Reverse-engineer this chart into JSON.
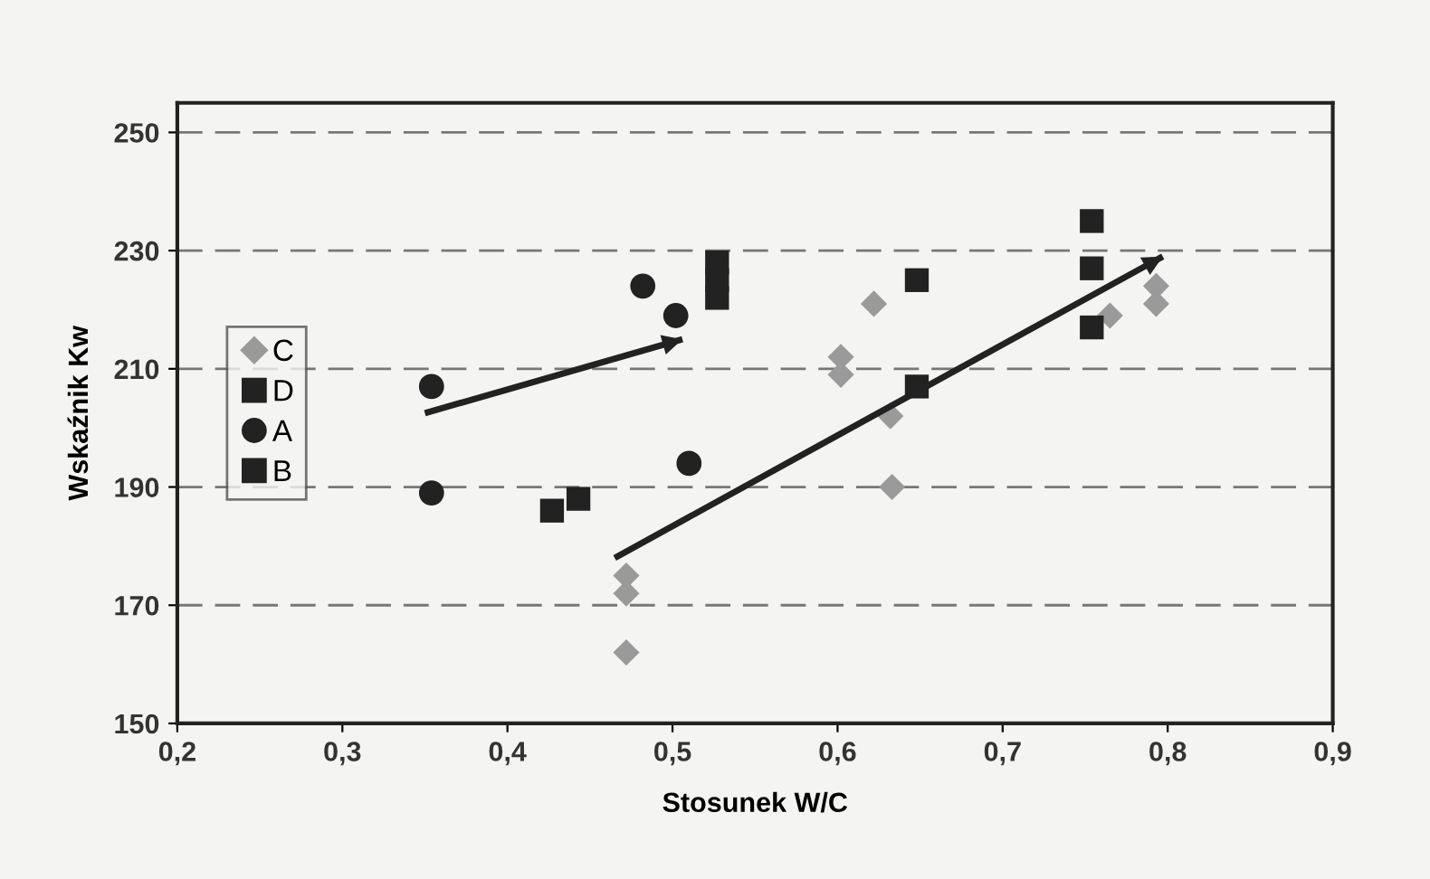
{
  "chart_data": {
    "type": "scatter",
    "xlabel": "Stosunek W/C",
    "ylabel": "Wskaźnik Kw",
    "xlim": [
      0.2,
      0.9
    ],
    "ylim": [
      150,
      255
    ],
    "xticks": [
      {
        "value": 0.2,
        "label": "0,2"
      },
      {
        "value": 0.3,
        "label": "0,3"
      },
      {
        "value": 0.4,
        "label": "0,4"
      },
      {
        "value": 0.5,
        "label": "0,5"
      },
      {
        "value": 0.6,
        "label": "0,6"
      },
      {
        "value": 0.7,
        "label": "0,7"
      },
      {
        "value": 0.8,
        "label": "0,8"
      },
      {
        "value": 0.9,
        "label": "0,9"
      }
    ],
    "yticks": [
      150,
      170,
      190,
      210,
      230,
      250
    ],
    "grid": "y",
    "legend": "left",
    "series": [
      {
        "name": "C",
        "color": "#9a9a9a",
        "marker": "diamond",
        "x": [
          0.472,
          0.472,
          0.472,
          0.602,
          0.602,
          0.622,
          0.632,
          0.633,
          0.765,
          0.793,
          0.793
        ],
        "values": [
          175,
          172,
          162,
          212,
          209,
          221,
          202,
          190,
          219,
          224,
          221
        ]
      },
      {
        "name": "D",
        "color": "#222222",
        "marker": "square",
        "x": [
          0.427,
          0.443,
          0.527,
          0.527,
          0.527
        ],
        "values": [
          186,
          188,
          228,
          225,
          222
        ]
      },
      {
        "name": "A",
        "color": "#222222",
        "marker": "circle",
        "x": [
          0.354,
          0.354,
          0.482,
          0.502,
          0.51
        ],
        "values": [
          207,
          189,
          224,
          219,
          194
        ]
      },
      {
        "name": "B",
        "color": "#222222",
        "marker": "square",
        "x": [
          0.648,
          0.648,
          0.754,
          0.754,
          0.754
        ],
        "values": [
          225,
          207,
          235,
          227,
          217
        ]
      },
      {
        "type": "line",
        "color": "#222222",
        "x": [
          0.35,
          0.506
        ],
        "values": [
          202.5,
          215
        ]
      },
      {
        "type": "line",
        "color": "#222222",
        "x": [
          0.465,
          0.797
        ],
        "values": [
          178,
          229
        ]
      }
    ]
  }
}
